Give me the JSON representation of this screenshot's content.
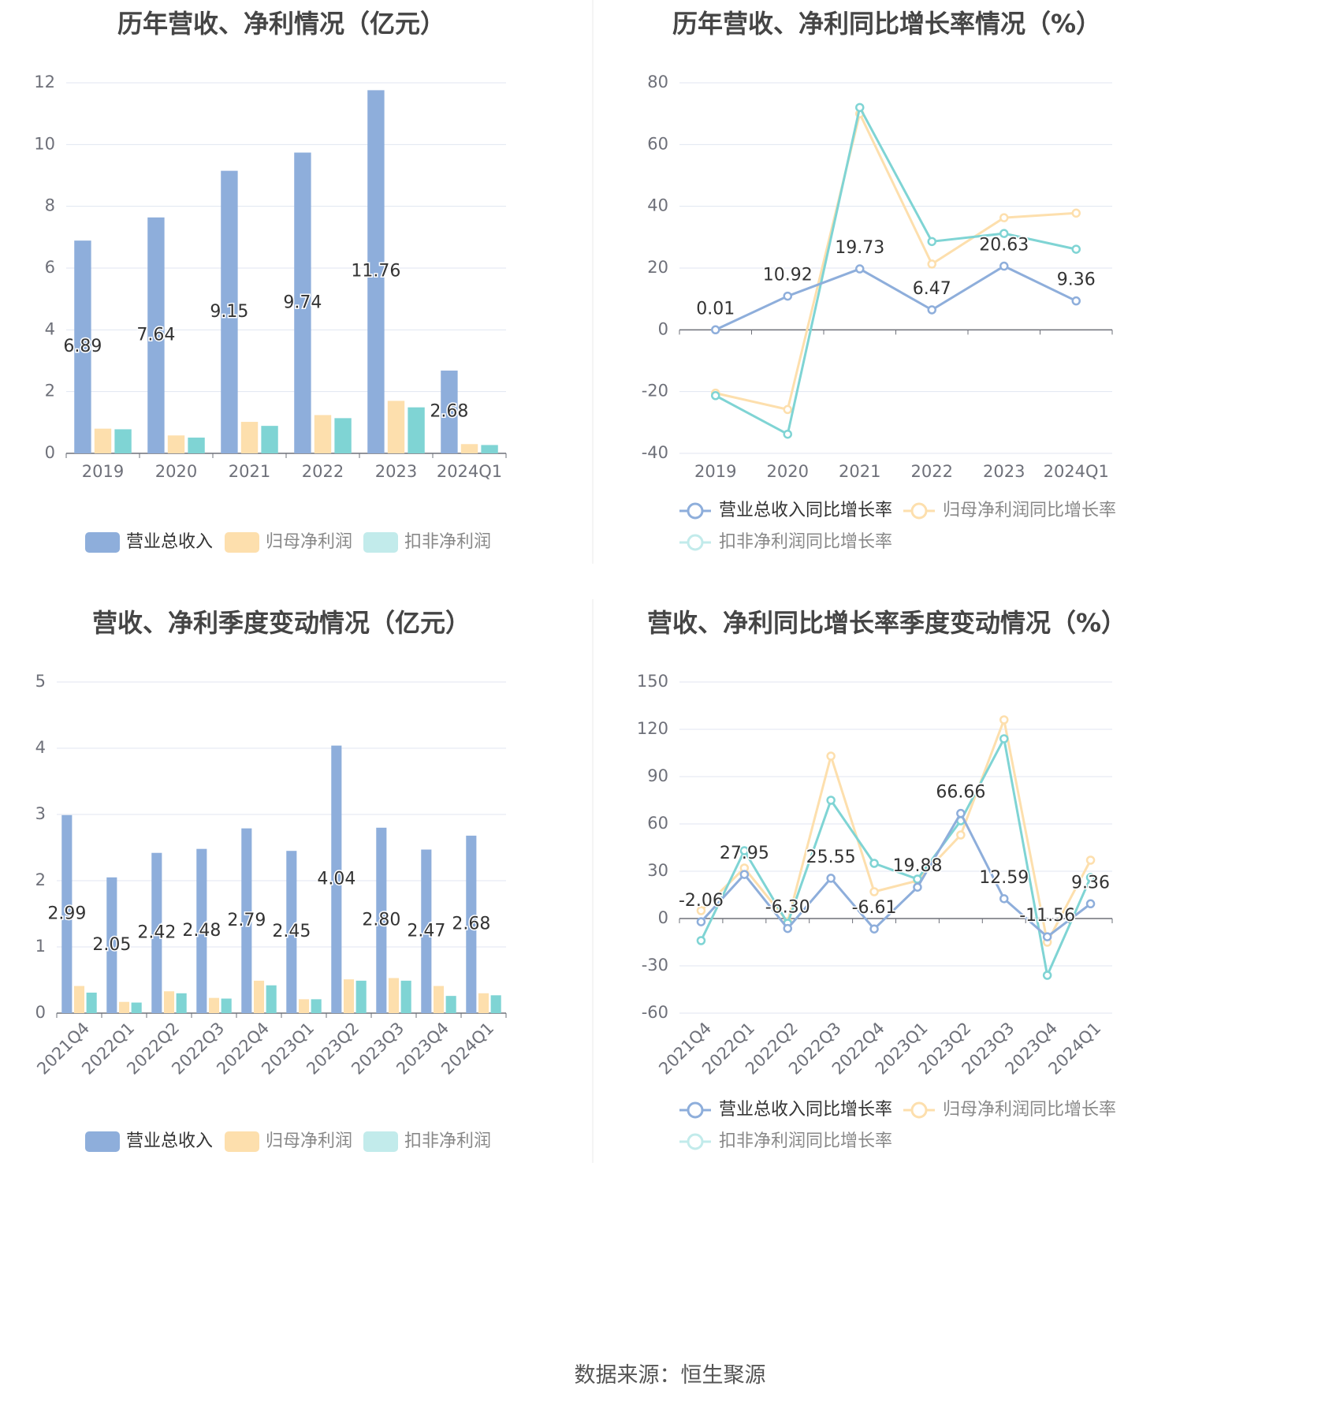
{
  "colors": {
    "revenue": "#8eaedb",
    "net_profit": "#fddfad",
    "deducted_profit": "#7fd4d4",
    "deducted_legend": "#c2ebeb",
    "axis": "#6e7079",
    "grid": "#e0e6f1",
    "title": "#454545",
    "label": "#333333",
    "divider": "#e8e8e8"
  },
  "source": "数据来源：恒生聚源",
  "chart_data": [
    {
      "id": "annual-amount",
      "type": "bar",
      "title": "历年营收、净利情况（亿元）",
      "categories": [
        "2019",
        "2020",
        "2021",
        "2022",
        "2023",
        "2024Q1"
      ],
      "ylim": [
        0,
        12
      ],
      "yticks": [
        0,
        2,
        4,
        6,
        8,
        10,
        12
      ],
      "grid": true,
      "legend_position": "bottom",
      "series": [
        {
          "name": "营业总收入",
          "values": [
            6.89,
            7.64,
            9.15,
            9.74,
            11.76,
            2.68
          ],
          "labels": [
            "6.89",
            "7.64",
            "9.15",
            "9.74",
            "11.76",
            "2.68"
          ]
        },
        {
          "name": "归母净利润",
          "values": [
            0.8,
            0.58,
            1.02,
            1.24,
            1.7,
            0.3
          ]
        },
        {
          "name": "扣非净利润",
          "values": [
            0.78,
            0.51,
            0.89,
            1.14,
            1.49,
            0.27
          ]
        }
      ]
    },
    {
      "id": "annual-growth",
      "type": "line",
      "title": "历年营收、净利同比增长率情况（%）",
      "categories": [
        "2019",
        "2020",
        "2021",
        "2022",
        "2023",
        "2024Q1"
      ],
      "ylim": [
        -40,
        80
      ],
      "yticks": [
        -40,
        -20,
        0,
        20,
        40,
        60,
        80
      ],
      "grid": true,
      "legend_position": "bottom",
      "series": [
        {
          "name": "营业总收入同比增长率",
          "values": [
            0.01,
            10.92,
            19.73,
            6.47,
            20.63,
            9.36
          ],
          "labels": [
            "0.01",
            "10.92",
            "19.73",
            "6.47",
            "20.63",
            "9.36"
          ]
        },
        {
          "name": "归母净利润同比增长率",
          "values": [
            -20.5,
            -25.8,
            70.0,
            21.3,
            36.3,
            37.8
          ]
        },
        {
          "name": "扣非净利润同比增长率",
          "values": [
            -21.3,
            -33.8,
            72.0,
            28.6,
            31.2,
            26.1
          ]
        }
      ]
    },
    {
      "id": "quarter-amount",
      "type": "bar",
      "title": "营收、净利季度变动情况（亿元）",
      "categories": [
        "2021Q4",
        "2022Q1",
        "2022Q2",
        "2022Q3",
        "2022Q4",
        "2023Q1",
        "2023Q2",
        "2023Q3",
        "2023Q4",
        "2024Q1"
      ],
      "ylim": [
        0,
        5
      ],
      "yticks": [
        0,
        1,
        2,
        3,
        4,
        5
      ],
      "grid": true,
      "legend_position": "bottom",
      "series": [
        {
          "name": "营业总收入",
          "values": [
            2.99,
            2.05,
            2.42,
            2.48,
            2.79,
            2.45,
            4.04,
            2.8,
            2.47,
            2.68
          ],
          "labels": [
            "2.99",
            "2.05",
            "2.42",
            "2.48",
            "2.79",
            "2.45",
            "4.04",
            "2.80",
            "2.47",
            "2.68"
          ]
        },
        {
          "name": "归母净利润",
          "values": [
            0.41,
            0.17,
            0.33,
            0.23,
            0.49,
            0.21,
            0.51,
            0.53,
            0.41,
            0.3
          ]
        },
        {
          "name": "扣非净利润",
          "values": [
            0.31,
            0.16,
            0.3,
            0.22,
            0.42,
            0.21,
            0.49,
            0.49,
            0.26,
            0.27
          ]
        }
      ]
    },
    {
      "id": "quarter-growth",
      "type": "line",
      "title": "营收、净利同比增长率季度变动情况（%）",
      "categories": [
        "2021Q4",
        "2022Q1",
        "2022Q2",
        "2022Q3",
        "2022Q4",
        "2023Q1",
        "2023Q2",
        "2023Q3",
        "2023Q4",
        "2024Q1"
      ],
      "ylim": [
        -60,
        150
      ],
      "yticks": [
        -60,
        -30,
        0,
        30,
        60,
        90,
        120,
        150
      ],
      "grid": true,
      "legend_position": "bottom",
      "series": [
        {
          "name": "营业总收入同比增长率",
          "values": [
            -2.06,
            27.95,
            -6.3,
            25.55,
            -6.61,
            19.88,
            66.66,
            12.59,
            -11.56,
            9.36
          ],
          "labels": [
            "-2.06",
            "27.95",
            "-6.30",
            "25.55",
            "-6.61",
            "19.88",
            "66.66",
            "12.59",
            "-11.56",
            "9.36"
          ]
        },
        {
          "name": "归母净利润同比增长率",
          "values": [
            5,
            32,
            -2,
            103,
            17,
            24,
            53,
            126,
            -15,
            37
          ]
        },
        {
          "name": "扣非净利润同比增长率",
          "values": [
            -14,
            43,
            -3,
            75,
            35,
            25,
            62,
            114,
            -36,
            26
          ]
        }
      ]
    }
  ]
}
